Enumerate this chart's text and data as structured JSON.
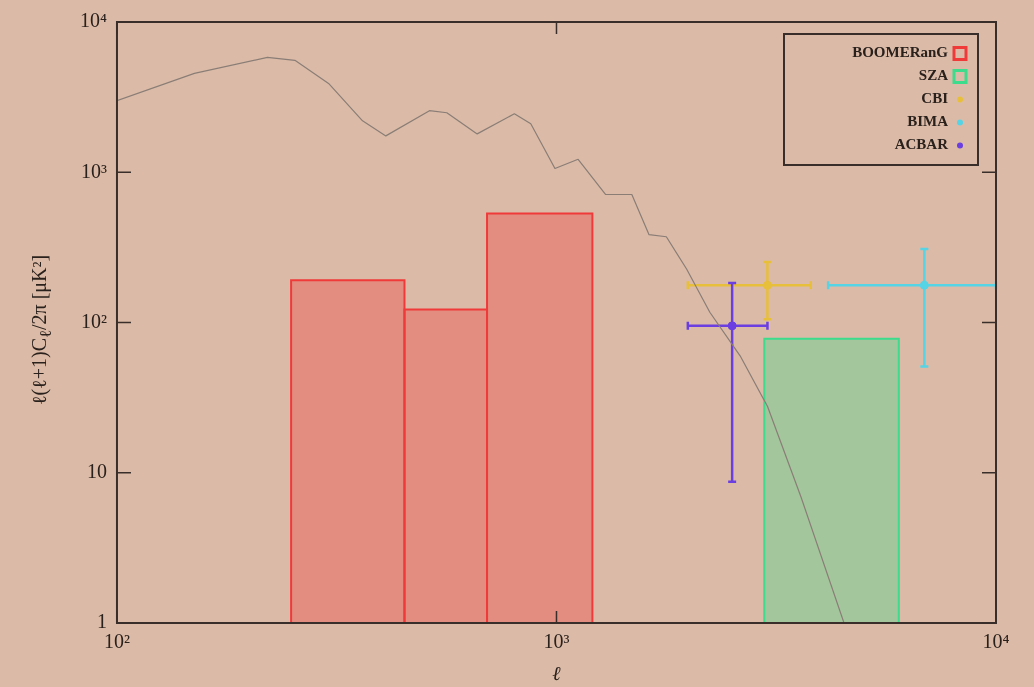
{
  "chart_data": {
    "type": "scatter",
    "xlabel": "ℓ",
    "ylabel": "ℓ(ℓ+1)C$_{ℓ}$/2π  [μK²]",
    "log": "xy",
    "grid": false,
    "legend": "top right",
    "xlim": [
      100,
      10000
    ],
    "ylim": [
      1,
      10000
    ],
    "xticks": [
      {
        "value": 100,
        "label": "10²"
      },
      {
        "value": 1000,
        "label": "10³"
      },
      {
        "value": 10000,
        "label": "10⁴"
      }
    ],
    "yticks": [
      1,
      10,
      {
        "value": 100,
        "label": "10²"
      },
      {
        "value": 1000,
        "label": "10³"
      },
      {
        "value": 10000,
        "label": "10⁴"
      }
    ],
    "series": [
      {
        "type": "line",
        "color": "#8a7d76",
        "marker": "none",
        "x": [
          100,
          150,
          220,
          254,
          303,
          362,
          409,
          514,
          563,
          660,
          802,
          874,
          992,
          1120,
          1294,
          1484,
          1624,
          1778,
          1977,
          2233,
          2617,
          3020,
          3600,
          4510
        ],
        "values": [
          3000,
          4550,
          5820,
          5560,
          3900,
          2200,
          1746,
          2570,
          2490,
          1800,
          2450,
          2100,
          1060,
          1220,
          711,
          711,
          384,
          372,
          227,
          117,
          60,
          27.7,
          6.9,
          1
        ]
      },
      {
        "name": "BOOMERanG",
        "type": "histogram",
        "color": "#f03a3a",
        "bins": [
          249,
          451,
          695,
          1207
        ],
        "values": [
          191,
          122,
          531
        ]
      },
      {
        "name": "SZA",
        "type": "histogram",
        "color": "#3ddc8c",
        "bins": [
          2970,
          6010
        ],
        "values": [
          78
        ]
      },
      {
        "name": "CBI",
        "color": "#e8bf3a",
        "marker": "circle",
        "x": [
          3020
        ],
        "values": [
          177
        ],
        "errors": [
          [
            105,
            253
          ]
        ],
        "xerrors": [
          [
            1990,
            3790
          ]
        ]
      },
      {
        "name": "BIMA",
        "color": "#55d4e6",
        "marker": "circle",
        "x": [
          6870
        ],
        "values": [
          177
        ],
        "errors": [
          [
            51,
            309
          ]
        ],
        "xerrors": [
          [
            4150,
            10000
          ]
        ]
      },
      {
        "name": "ACBAR",
        "color": "#6a3ee0",
        "marker": "circle",
        "x": [
          2510
        ],
        "values": [
          95
        ],
        "errors": [
          [
            8.7,
            183
          ]
        ],
        "xerrors": [
          [
            1990,
            3020
          ]
        ]
      }
    ]
  }
}
